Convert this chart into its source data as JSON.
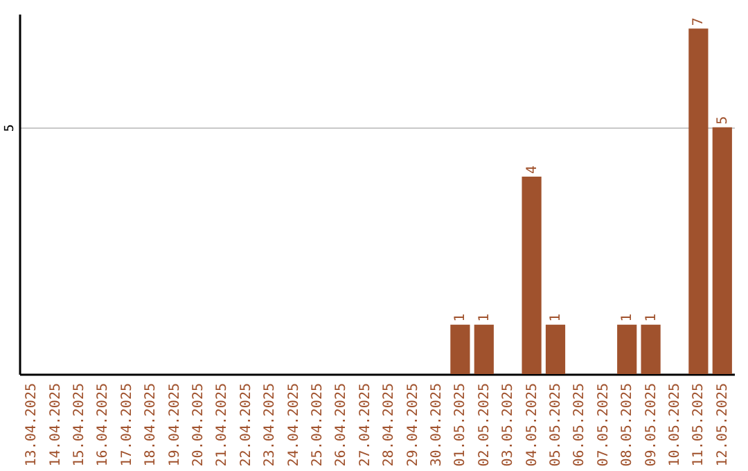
{
  "chart_data": {
    "type": "bar",
    "categories": [
      "13.04.2025",
      "14.04.2025",
      "15.04.2025",
      "16.04.2025",
      "17.04.2025",
      "18.04.2025",
      "19.04.2025",
      "20.04.2025",
      "21.04.2025",
      "22.04.2025",
      "23.04.2025",
      "24.04.2025",
      "25.04.2025",
      "26.04.2025",
      "27.04.2025",
      "28.04.2025",
      "29.04.2025",
      "30.04.2025",
      "01.05.2025",
      "02.05.2025",
      "03.05.2025",
      "04.05.2025",
      "05.05.2025",
      "06.05.2025",
      "07.05.2025",
      "08.05.2025",
      "09.05.2025",
      "10.05.2025",
      "11.05.2025",
      "12.05.2025"
    ],
    "values": [
      null,
      null,
      null,
      null,
      null,
      null,
      null,
      null,
      null,
      null,
      null,
      null,
      null,
      null,
      null,
      null,
      null,
      null,
      1,
      1,
      null,
      4,
      1,
      null,
      null,
      1,
      1,
      null,
      7,
      5
    ],
    "data_labels": true,
    "color": "#a0522d",
    "ylim": [
      0,
      7.3
    ],
    "yticks": [
      5
    ],
    "grid": "y"
  }
}
